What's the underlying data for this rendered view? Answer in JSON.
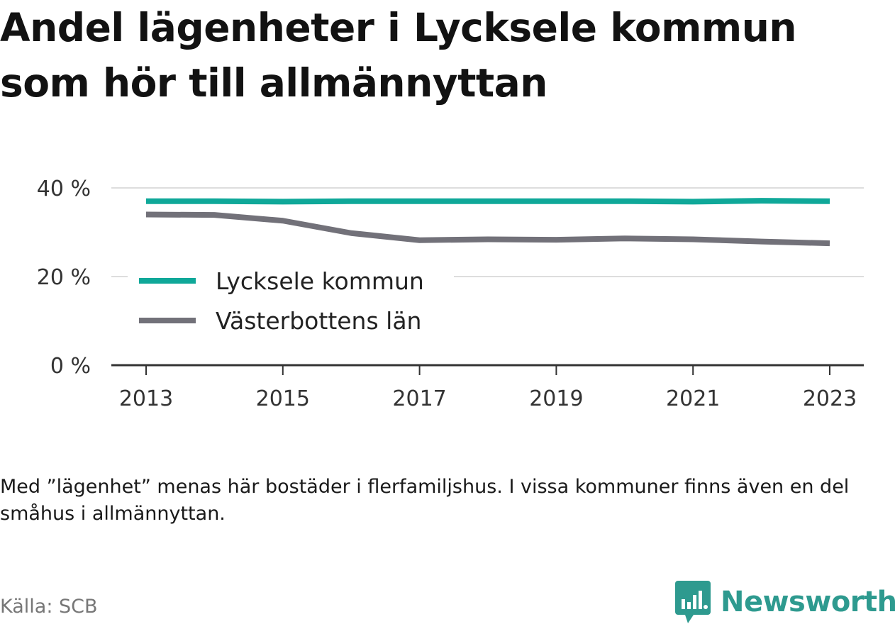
{
  "title": "Andel lägenheter i Lycksele kommun som hör till allmännyttan",
  "note": "Med ”lägenhet” menas här bostäder i flerfamiljshus. I vissa kommuner finns även en del småhus i allmännyttan.",
  "source": "Källa: SCB",
  "brand": {
    "name": "Newsworthy",
    "icon": "newsworthy-logo-icon"
  },
  "colors": {
    "lycksele": "#0fa899",
    "vasterbotten": "#727179",
    "grid": "#dddddd",
    "axis": "#333333"
  },
  "chart_data": {
    "type": "line",
    "x": [
      2013,
      2014,
      2015,
      2016,
      2017,
      2018,
      2019,
      2020,
      2021,
      2022,
      2023
    ],
    "xticks": [
      "2013",
      "2015",
      "2017",
      "2019",
      "2021",
      "2023"
    ],
    "yticks": [
      "0 %",
      "20 %",
      "40 %"
    ],
    "ylim": [
      0,
      40
    ],
    "legend_position": "bottom-left",
    "grid": true,
    "series": [
      {
        "name": "Lycksele kommun",
        "values": [
          37.0,
          37.0,
          36.9,
          37.0,
          37.0,
          37.0,
          37.0,
          37.0,
          36.9,
          37.1,
          37.0
        ]
      },
      {
        "name": "Västerbottens län",
        "values": [
          34.0,
          33.9,
          32.6,
          29.8,
          28.2,
          28.4,
          28.3,
          28.6,
          28.4,
          27.9,
          27.5
        ]
      }
    ]
  }
}
